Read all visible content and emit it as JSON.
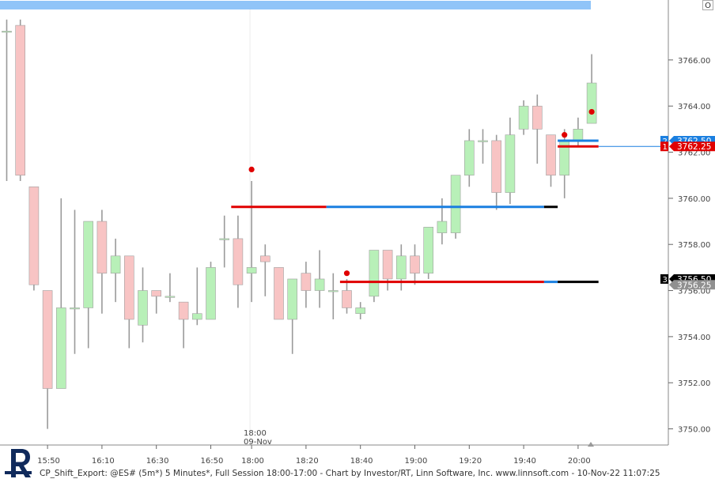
{
  "window": {
    "toolbar_button": "O"
  },
  "footer": {
    "caption": "CP_Shift_Export: @ES# (5m*) 5 Minutes*, Full Session 18:00-17:00 - Chart by Investor/RT, Linn Software, Inc. www.linnsoft.com - 10-Nov-22 11:07:25"
  },
  "session": {
    "time": "18:00",
    "date": "09-Nov"
  },
  "colors": {
    "up_fill": "#b8f0b8",
    "down_fill": "#f8c4c4",
    "wick": "#9a9a9a",
    "red_line": "#e00000",
    "blue_line": "#1a7fe0",
    "black_line": "#000000",
    "top_bar": "#90c4f8",
    "dot": "#e00000"
  },
  "chart_data": {
    "type": "candlestick",
    "title": "",
    "xlabel": "",
    "ylabel": "",
    "ylim": [
      3749.3,
      3768.6
    ],
    "y_ticks": [
      3750,
      3752,
      3754,
      3756,
      3758,
      3760,
      3762,
      3764,
      3766
    ],
    "y_tick_labels": [
      "3750.00",
      "3752.00",
      "3754.00",
      "3756.00",
      "3758.00",
      "3760.00",
      "3762.00",
      "3764.00",
      "3766.00"
    ],
    "x_tick_labels": [
      "15:50",
      "16:10",
      "16:30",
      "16:50",
      "18:00",
      "18:20",
      "18:40",
      "19:00",
      "19:20",
      "19:40",
      "20:00"
    ],
    "x_tick_bar_index": [
      3,
      7,
      11,
      15,
      18,
      22,
      26,
      30,
      34,
      38,
      42
    ],
    "session_break_bar_index": 18,
    "candles": [
      {
        "o": 3767.25,
        "h": 3767.75,
        "l": 3760.75,
        "c": 3767.25
      },
      {
        "o": 3767.5,
        "h": 3767.75,
        "l": 3760.75,
        "c": 3761.0
      },
      {
        "o": 3760.5,
        "h": 3760.5,
        "l": 3756.0,
        "c": 3756.25
      },
      {
        "o": 3756.0,
        "h": 3756.0,
        "l": 3750.0,
        "c": 3751.75
      },
      {
        "o": 3751.75,
        "h": 3760.0,
        "l": 3751.75,
        "c": 3755.25
      },
      {
        "o": 3755.25,
        "h": 3759.5,
        "l": 3753.25,
        "c": 3755.25
      },
      {
        "o": 3755.25,
        "h": 3759.0,
        "l": 3753.5,
        "c": 3759.0
      },
      {
        "o": 3759.0,
        "h": 3759.5,
        "l": 3755.0,
        "c": 3756.75
      },
      {
        "o": 3756.75,
        "h": 3758.25,
        "l": 3755.5,
        "c": 3757.5
      },
      {
        "o": 3757.5,
        "h": 3757.5,
        "l": 3753.5,
        "c": 3754.75
      },
      {
        "o": 3754.5,
        "h": 3757.0,
        "l": 3753.75,
        "c": 3756.0
      },
      {
        "o": 3756.0,
        "h": 3756.0,
        "l": 3755.0,
        "c": 3755.75
      },
      {
        "o": 3755.75,
        "h": 3756.75,
        "l": 3755.5,
        "c": 3755.75
      },
      {
        "o": 3755.5,
        "h": 3755.5,
        "l": 3753.5,
        "c": 3754.75
      },
      {
        "o": 3754.75,
        "h": 3757.0,
        "l": 3754.5,
        "c": 3755.0
      },
      {
        "o": 3754.75,
        "h": 3757.25,
        "l": 3754.75,
        "c": 3757.0
      },
      {
        "o": 3758.25,
        "h": 3759.25,
        "l": 3757.0,
        "c": 3758.25
      },
      {
        "o": 3758.25,
        "h": 3759.25,
        "l": 3755.25,
        "c": 3756.25
      },
      {
        "o": 3756.75,
        "h": 3760.75,
        "l": 3755.5,
        "c": 3757.0
      },
      {
        "o": 3757.5,
        "h": 3758.0,
        "l": 3755.75,
        "c": 3757.25
      },
      {
        "o": 3757.0,
        "h": 3757.0,
        "l": 3754.75,
        "c": 3754.75
      },
      {
        "o": 3754.75,
        "h": 3756.5,
        "l": 3753.25,
        "c": 3756.5
      },
      {
        "o": 3756.75,
        "h": 3757.25,
        "l": 3755.25,
        "c": 3756.0
      },
      {
        "o": 3756.0,
        "h": 3757.75,
        "l": 3755.25,
        "c": 3756.5
      },
      {
        "o": 3756.0,
        "h": 3756.75,
        "l": 3754.75,
        "c": 3756.0
      },
      {
        "o": 3756.0,
        "h": 3756.5,
        "l": 3755.0,
        "c": 3755.25
      },
      {
        "o": 3755.0,
        "h": 3755.5,
        "l": 3754.75,
        "c": 3755.25
      },
      {
        "o": 3755.75,
        "h": 3757.75,
        "l": 3755.5,
        "c": 3757.75
      },
      {
        "o": 3757.75,
        "h": 3757.75,
        "l": 3756.0,
        "c": 3756.5
      },
      {
        "o": 3756.5,
        "h": 3758.0,
        "l": 3756.0,
        "c": 3757.5
      },
      {
        "o": 3757.5,
        "h": 3758.0,
        "l": 3756.25,
        "c": 3756.75
      },
      {
        "o": 3756.75,
        "h": 3758.75,
        "l": 3756.5,
        "c": 3758.75
      },
      {
        "o": 3758.5,
        "h": 3760.0,
        "l": 3758.0,
        "c": 3759.0
      },
      {
        "o": 3758.5,
        "h": 3761.0,
        "l": 3758.25,
        "c": 3761.0
      },
      {
        "o": 3761.0,
        "h": 3763.0,
        "l": 3760.5,
        "c": 3762.5
      },
      {
        "o": 3762.5,
        "h": 3763.0,
        "l": 3761.5,
        "c": 3762.5
      },
      {
        "o": 3762.5,
        "h": 3762.75,
        "l": 3759.5,
        "c": 3760.25
      },
      {
        "o": 3760.25,
        "h": 3763.5,
        "l": 3759.75,
        "c": 3762.75
      },
      {
        "o": 3763.0,
        "h": 3764.25,
        "l": 3762.75,
        "c": 3764.0
      },
      {
        "o": 3764.0,
        "h": 3764.5,
        "l": 3761.5,
        "c": 3763.0
      },
      {
        "o": 3762.75,
        "h": 3762.75,
        "l": 3760.5,
        "c": 3761.0
      },
      {
        "o": 3761.0,
        "h": 3763.0,
        "l": 3760.0,
        "c": 3762.5
      },
      {
        "o": 3762.5,
        "h": 3763.5,
        "l": 3762.25,
        "c": 3763.0
      },
      {
        "o": 3763.25,
        "h": 3766.25,
        "l": 3763.25,
        "c": 3765.0
      }
    ],
    "signal_dots": [
      {
        "bar": 18,
        "price": 3761.25
      },
      {
        "bar": 25,
        "price": 3756.75
      },
      {
        "bar": 41,
        "price": 3762.75
      },
      {
        "bar": 43,
        "price": 3763.75
      }
    ],
    "level_lines": [
      {
        "price": 3759.625,
        "from_bar": 16.5,
        "to_bar": 40.5,
        "segments": [
          {
            "color": "red_line",
            "to_bar": 23.5
          },
          {
            "color": "blue_line",
            "to_bar": 39.5
          },
          {
            "color": "black_line",
            "to_bar": 40.5
          }
        ]
      },
      {
        "price": 3756.375,
        "from_bar": 24.5,
        "to_bar": 43.5,
        "segments": [
          {
            "color": "red_line",
            "to_bar": 39.5
          },
          {
            "color": "blue_line",
            "to_bar": 40.5
          },
          {
            "color": "black_line",
            "to_bar": 43.5
          }
        ]
      },
      {
        "price": 3762.5,
        "from_bar": 40.5,
        "to_bar": 43.5,
        "segments": [
          {
            "color": "blue_line",
            "to_bar": 43.5
          }
        ]
      },
      {
        "price": 3762.25,
        "from_bar": 40.5,
        "to_bar": 43.5,
        "segments": [
          {
            "color": "red_line",
            "to_bar": 43.5
          }
        ]
      }
    ],
    "price_markers": [
      {
        "id": "2",
        "label": "3762.50",
        "price": 3762.5,
        "style": "blue"
      },
      {
        "id": "1",
        "label": "3762.25",
        "price": 3762.25,
        "style": "red"
      },
      {
        "id": "3",
        "label": "3756.50",
        "price": 3756.5,
        "style": "black"
      },
      {
        "id": "",
        "label": "3756.25",
        "price": 3756.25,
        "style": "gray"
      }
    ],
    "grid": false,
    "legend": "none"
  }
}
